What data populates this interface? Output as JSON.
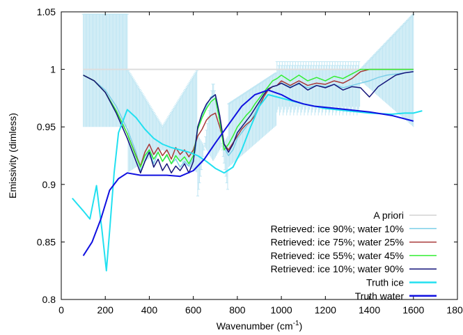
{
  "chart_data": {
    "type": "line",
    "xlabel": "Wavenumber (cm",
    "xlabel_sup": "-1",
    "xlabel_end": ")",
    "ylabel": "Emissivity (dimless)",
    "xlim": [
      0,
      1800
    ],
    "ylim": [
      0.8,
      1.05
    ],
    "xticks": [
      0,
      200,
      400,
      600,
      800,
      1000,
      1200,
      1400,
      1600,
      1800
    ],
    "yticks": [
      0.8,
      0.85,
      0.9,
      0.95,
      1,
      1.05
    ],
    "ytick_labels": [
      "0.8",
      "0.85",
      "0.9",
      "0.95",
      "1",
      "1.05"
    ],
    "legend_position": "bottom-right",
    "series": [
      {
        "name": "A priori",
        "color": "#dddddd",
        "error_band": {
          "color": "#bfe6f3",
          "upper": 1.048,
          "lower": 0.95
        },
        "points": [
          [
            100,
            1.0
          ],
          [
            1600,
            1.0
          ]
        ]
      },
      {
        "name": "Retrieved: ice 90%; water 10%",
        "color": "#7ccfe8",
        "points": [
          [
            100,
            0.995
          ],
          [
            150,
            0.99
          ],
          [
            200,
            0.982
          ],
          [
            250,
            0.968
          ],
          [
            300,
            0.948
          ],
          [
            340,
            0.928
          ],
          [
            360,
            0.912
          ],
          [
            380,
            0.92
          ],
          [
            400,
            0.93
          ],
          [
            420,
            0.918
          ],
          [
            440,
            0.928
          ],
          [
            460,
            0.92
          ],
          [
            480,
            0.925
          ],
          [
            500,
            0.918
          ],
          [
            520,
            0.922
          ],
          [
            540,
            0.915
          ],
          [
            560,
            0.92
          ],
          [
            580,
            0.916
          ],
          [
            600,
            0.922
          ],
          [
            610,
            0.93
          ],
          [
            620,
            0.95
          ],
          [
            640,
            0.96
          ],
          [
            660,
            0.968
          ],
          [
            680,
            0.976
          ],
          [
            700,
            0.978
          ],
          [
            710,
            0.97
          ],
          [
            720,
            0.955
          ],
          [
            740,
            0.932
          ],
          [
            760,
            0.925
          ],
          [
            780,
            0.93
          ],
          [
            800,
            0.94
          ],
          [
            820,
            0.945
          ],
          [
            840,
            0.95
          ],
          [
            860,
            0.955
          ],
          [
            880,
            0.962
          ],
          [
            900,
            0.97
          ],
          [
            920,
            0.978
          ],
          [
            940,
            0.983
          ],
          [
            960,
            0.985
          ],
          [
            980,
            0.986
          ],
          [
            1000,
            0.988
          ],
          [
            1040,
            0.985
          ],
          [
            1080,
            0.987
          ],
          [
            1120,
            0.984
          ],
          [
            1160,
            0.986
          ],
          [
            1200,
            0.985
          ],
          [
            1240,
            0.987
          ],
          [
            1280,
            0.984
          ],
          [
            1320,
            0.986
          ],
          [
            1360,
            0.988
          ],
          [
            1400,
            0.99
          ],
          [
            1440,
            0.993
          ],
          [
            1480,
            0.995
          ],
          [
            1520,
            0.996
          ],
          [
            1560,
            0.997
          ],
          [
            1600,
            0.998
          ]
        ]
      },
      {
        "name": "Retrieved: ice 75%; water 25%",
        "color": "#a83838",
        "points": [
          [
            100,
            0.995
          ],
          [
            150,
            0.99
          ],
          [
            200,
            0.98
          ],
          [
            250,
            0.964
          ],
          [
            300,
            0.944
          ],
          [
            340,
            0.925
          ],
          [
            360,
            0.916
          ],
          [
            380,
            0.928
          ],
          [
            400,
            0.935
          ],
          [
            420,
            0.926
          ],
          [
            440,
            0.932
          ],
          [
            460,
            0.925
          ],
          [
            480,
            0.93
          ],
          [
            500,
            0.922
          ],
          [
            520,
            0.932
          ],
          [
            540,
            0.926
          ],
          [
            560,
            0.93
          ],
          [
            580,
            0.924
          ],
          [
            600,
            0.93
          ],
          [
            620,
            0.942
          ],
          [
            640,
            0.948
          ],
          [
            660,
            0.956
          ],
          [
            680,
            0.96
          ],
          [
            700,
            0.962
          ],
          [
            720,
            0.95
          ],
          [
            740,
            0.935
          ],
          [
            760,
            0.93
          ],
          [
            780,
            0.936
          ],
          [
            800,
            0.942
          ],
          [
            820,
            0.948
          ],
          [
            840,
            0.952
          ],
          [
            860,
            0.955
          ],
          [
            880,
            0.96
          ],
          [
            900,
            0.968
          ],
          [
            920,
            0.976
          ],
          [
            940,
            0.982
          ],
          [
            960,
            0.985
          ],
          [
            980,
            0.986
          ],
          [
            1000,
            0.99
          ],
          [
            1040,
            0.986
          ],
          [
            1080,
            0.99
          ],
          [
            1120,
            0.986
          ],
          [
            1160,
            0.988
          ],
          [
            1200,
            0.987
          ],
          [
            1240,
            0.99
          ],
          [
            1280,
            0.988
          ],
          [
            1320,
            0.992
          ],
          [
            1360,
            0.998
          ],
          [
            1400,
            1.0
          ],
          [
            1440,
            1.0
          ],
          [
            1480,
            1.0
          ],
          [
            1520,
            1.0
          ],
          [
            1560,
            1.0
          ],
          [
            1600,
            1.0
          ]
        ]
      },
      {
        "name": "Retrieved: ice 55%; water 45%",
        "color": "#33ee33",
        "points": [
          [
            100,
            0.995
          ],
          [
            150,
            0.99
          ],
          [
            200,
            0.98
          ],
          [
            250,
            0.964
          ],
          [
            300,
            0.944
          ],
          [
            340,
            0.924
          ],
          [
            360,
            0.915
          ],
          [
            380,
            0.925
          ],
          [
            400,
            0.93
          ],
          [
            420,
            0.922
          ],
          [
            440,
            0.928
          ],
          [
            460,
            0.92
          ],
          [
            480,
            0.926
          ],
          [
            500,
            0.918
          ],
          [
            520,
            0.925
          ],
          [
            540,
            0.92
          ],
          [
            560,
            0.924
          ],
          [
            580,
            0.918
          ],
          [
            600,
            0.925
          ],
          [
            620,
            0.948
          ],
          [
            640,
            0.958
          ],
          [
            660,
            0.966
          ],
          [
            680,
            0.972
          ],
          [
            700,
            0.975
          ],
          [
            720,
            0.955
          ],
          [
            740,
            0.93
          ],
          [
            760,
            0.935
          ],
          [
            780,
            0.942
          ],
          [
            800,
            0.95
          ],
          [
            820,
            0.955
          ],
          [
            840,
            0.96
          ],
          [
            860,
            0.964
          ],
          [
            880,
            0.97
          ],
          [
            900,
            0.975
          ],
          [
            920,
            0.98
          ],
          [
            940,
            0.985
          ],
          [
            960,
            0.99
          ],
          [
            980,
            0.992
          ],
          [
            1000,
            0.995
          ],
          [
            1040,
            0.99
          ],
          [
            1080,
            0.995
          ],
          [
            1120,
            0.99
          ],
          [
            1160,
            0.993
          ],
          [
            1200,
            0.99
          ],
          [
            1240,
            0.994
          ],
          [
            1280,
            0.992
          ],
          [
            1320,
            0.996
          ],
          [
            1360,
            1.0
          ],
          [
            1400,
            1.0
          ],
          [
            1440,
            1.0
          ],
          [
            1480,
            1.0
          ],
          [
            1520,
            1.0
          ],
          [
            1560,
            1.0
          ],
          [
            1600,
            1.0
          ]
        ]
      },
      {
        "name": "Retrieved: ice 10%; water 90%",
        "color": "#14147a",
        "points": [
          [
            100,
            0.995
          ],
          [
            150,
            0.99
          ],
          [
            200,
            0.98
          ],
          [
            250,
            0.962
          ],
          [
            300,
            0.94
          ],
          [
            340,
            0.92
          ],
          [
            360,
            0.91
          ],
          [
            380,
            0.92
          ],
          [
            400,
            0.928
          ],
          [
            420,
            0.915
          ],
          [
            440,
            0.922
          ],
          [
            460,
            0.912
          ],
          [
            480,
            0.918
          ],
          [
            500,
            0.91
          ],
          [
            520,
            0.916
          ],
          [
            540,
            0.912
          ],
          [
            560,
            0.918
          ],
          [
            580,
            0.91
          ],
          [
            600,
            0.92
          ],
          [
            620,
            0.95
          ],
          [
            640,
            0.962
          ],
          [
            660,
            0.97
          ],
          [
            680,
            0.975
          ],
          [
            700,
            0.978
          ],
          [
            720,
            0.96
          ],
          [
            740,
            0.935
          ],
          [
            760,
            0.928
          ],
          [
            780,
            0.935
          ],
          [
            800,
            0.945
          ],
          [
            820,
            0.95
          ],
          [
            840,
            0.955
          ],
          [
            860,
            0.96
          ],
          [
            880,
            0.966
          ],
          [
            900,
            0.972
          ],
          [
            920,
            0.978
          ],
          [
            940,
            0.983
          ],
          [
            960,
            0.985
          ],
          [
            980,
            0.986
          ],
          [
            1000,
            0.988
          ],
          [
            1040,
            0.984
          ],
          [
            1080,
            0.988
          ],
          [
            1120,
            0.982
          ],
          [
            1160,
            0.986
          ],
          [
            1200,
            0.984
          ],
          [
            1240,
            0.987
          ],
          [
            1280,
            0.982
          ],
          [
            1320,
            0.985
          ],
          [
            1360,
            0.984
          ],
          [
            1380,
            0.98
          ],
          [
            1400,
            0.976
          ],
          [
            1440,
            0.985
          ],
          [
            1480,
            0.99
          ],
          [
            1520,
            0.995
          ],
          [
            1560,
            0.997
          ],
          [
            1600,
            0.998
          ]
        ]
      },
      {
        "name": "Truth ice",
        "color": "#22e0f0",
        "points": [
          [
            50,
            0.888
          ],
          [
            100,
            0.877
          ],
          [
            130,
            0.87
          ],
          [
            160,
            0.899
          ],
          [
            185,
            0.86
          ],
          [
            205,
            0.825
          ],
          [
            220,
            0.86
          ],
          [
            240,
            0.91
          ],
          [
            260,
            0.945
          ],
          [
            300,
            0.965
          ],
          [
            340,
            0.958
          ],
          [
            380,
            0.948
          ],
          [
            420,
            0.94
          ],
          [
            460,
            0.935
          ],
          [
            500,
            0.932
          ],
          [
            540,
            0.93
          ],
          [
            580,
            0.928
          ],
          [
            620,
            0.925
          ],
          [
            660,
            0.92
          ],
          [
            700,
            0.914
          ],
          [
            740,
            0.91
          ],
          [
            780,
            0.915
          ],
          [
            820,
            0.93
          ],
          [
            860,
            0.95
          ],
          [
            900,
            0.968
          ],
          [
            940,
            0.978
          ],
          [
            1000,
            0.975
          ],
          [
            1100,
            0.97
          ],
          [
            1200,
            0.966
          ],
          [
            1300,
            0.964
          ],
          [
            1400,
            0.962
          ],
          [
            1500,
            0.961
          ],
          [
            1560,
            0.962
          ],
          [
            1600,
            0.962
          ],
          [
            1640,
            0.964
          ]
        ]
      },
      {
        "name": "Truth water",
        "color": "#1010e0",
        "points": [
          [
            100,
            0.838
          ],
          [
            140,
            0.85
          ],
          [
            180,
            0.87
          ],
          [
            220,
            0.895
          ],
          [
            260,
            0.905
          ],
          [
            300,
            0.91
          ],
          [
            360,
            0.908
          ],
          [
            420,
            0.908
          ],
          [
            480,
            0.908
          ],
          [
            540,
            0.907
          ],
          [
            600,
            0.912
          ],
          [
            650,
            0.922
          ],
          [
            700,
            0.936
          ],
          [
            760,
            0.952
          ],
          [
            820,
            0.968
          ],
          [
            880,
            0.978
          ],
          [
            940,
            0.982
          ],
          [
            1000,
            0.978
          ],
          [
            1050,
            0.973
          ],
          [
            1100,
            0.97
          ],
          [
            1150,
            0.968
          ],
          [
            1200,
            0.967
          ],
          [
            1300,
            0.965
          ],
          [
            1400,
            0.963
          ],
          [
            1500,
            0.96
          ],
          [
            1600,
            0.955
          ]
        ]
      }
    ]
  }
}
